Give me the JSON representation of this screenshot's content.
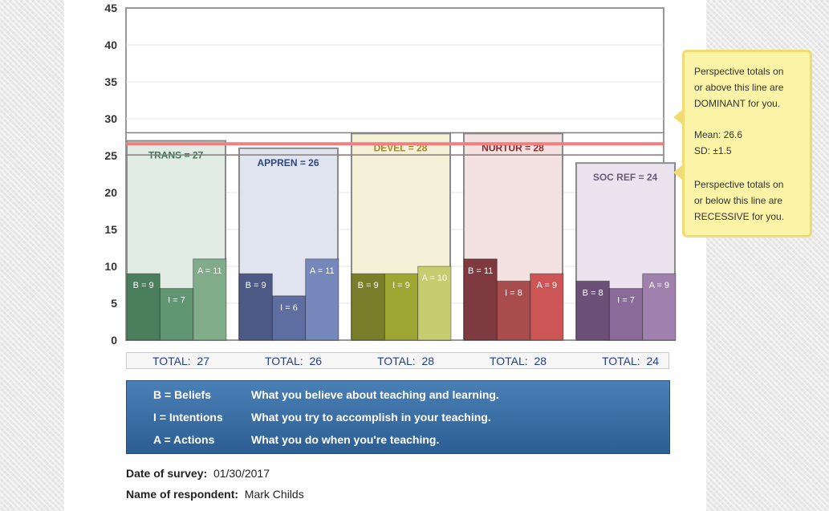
{
  "chart_data": {
    "type": "bar",
    "ylim": [
      0,
      45
    ],
    "yticks": [
      0,
      5,
      10,
      15,
      20,
      25,
      30,
      35,
      40,
      45
    ],
    "mean": 26.6,
    "sd": 1.5,
    "upper_line": 28.1,
    "lower_line": 25.1,
    "perspectives": [
      {
        "name": "TRANS",
        "label": "TRANS = 27",
        "total": 27,
        "color": "#4f8a63",
        "fill": "#e1ece4",
        "labelColor": "#3f7a53",
        "segments": [
          {
            "label": "B = 9",
            "value": 9,
            "color": "#4a7e5c"
          },
          {
            "label": "I = 7",
            "value": 7,
            "color": "#5f9570"
          },
          {
            "label": "A = 11",
            "value": 11,
            "color": "#80ac8a"
          }
        ]
      },
      {
        "name": "APPREN",
        "label": "APPREN = 26",
        "total": 26,
        "color": "#5a6c9c",
        "fill": "#e0e4f0",
        "labelColor": "#2f4585",
        "segments": [
          {
            "label": "B = 9",
            "value": 9,
            "color": "#4e5a86"
          },
          {
            "label": "I = 6",
            "value": 6,
            "color": "#5e6ea0"
          },
          {
            "label": "A = 11",
            "value": 11,
            "color": "#7688bb"
          }
        ]
      },
      {
        "name": "DEVEL",
        "label": "DEVEL = 28",
        "total": 28,
        "color": "#a8a640",
        "fill": "#f4f1d8",
        "labelColor": "#a88a20",
        "segments": [
          {
            "label": "B = 9",
            "value": 9,
            "color": "#7a7d2a"
          },
          {
            "label": "I = 9",
            "value": 9,
            "color": "#9ea532"
          },
          {
            "label": "A = 10",
            "value": 10,
            "color": "#c8cc70"
          }
        ]
      },
      {
        "name": "NURTUR",
        "label": "NURTUR = 28",
        "total": 28,
        "color": "#a84a4a",
        "fill": "#f4e1e1",
        "labelColor": "#8a2a2a",
        "segments": [
          {
            "label": "B = 11",
            "value": 11,
            "color": "#7e3a3e"
          },
          {
            "label": "I = 8",
            "value": 8,
            "color": "#a84c4e"
          },
          {
            "label": "A = 9",
            "value": 9,
            "color": "#cc5555"
          }
        ]
      },
      {
        "name": "SOC REF",
        "label": "SOC REF = 24",
        "total": 24,
        "color": "#8a6a9a",
        "fill": "#ebe4f0",
        "labelColor": "#6a5a7a",
        "segments": [
          {
            "label": "B = 8",
            "value": 8,
            "color": "#6d5078"
          },
          {
            "label": "I = 7",
            "value": 7,
            "color": "#8a6a98"
          },
          {
            "label": "A = 9",
            "value": 9,
            "color": "#a080ad"
          }
        ]
      }
    ]
  },
  "totals": [
    {
      "label": "TOTAL:",
      "value": "27"
    },
    {
      "label": "TOTAL:",
      "value": "26"
    },
    {
      "label": "TOTAL:",
      "value": "28"
    },
    {
      "label": "TOTAL:",
      "value": "28"
    },
    {
      "label": "TOTAL:",
      "value": "24"
    }
  ],
  "legend": [
    {
      "key": "B = Beliefs",
      "desc": "What you believe about teaching and learning."
    },
    {
      "key": "I = Intentions",
      "desc": "What you try to accomplish in your teaching."
    },
    {
      "key": "A = Actions",
      "desc": "What you do when you're teaching."
    }
  ],
  "survey": {
    "date_label": "Date of survey:",
    "date_value": "01/30/2017",
    "name_label": "Name of respondent:",
    "name_value": "Mark Childs"
  },
  "notes": {
    "dominant_1": "Perspective totals on",
    "dominant_2": "or above this line are",
    "dominant_3": "DOMINANT for you.",
    "mean": "Mean: 26.6",
    "sd": "SD: ±1.5",
    "recessive_1": "Perspective totals on",
    "recessive_2": "or below this line are",
    "recessive_3": "RECESSIVE for you."
  },
  "colors": {
    "mean_line": "#f08080",
    "band_line": "#8a7a7a",
    "frame": "#999999"
  }
}
